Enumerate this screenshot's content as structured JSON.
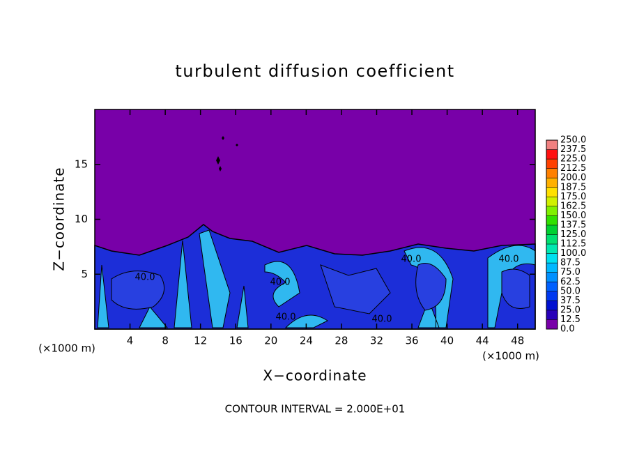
{
  "chart_data": {
    "type": "contour",
    "title": "turbulent diffusion coefficient",
    "xlabel": "X−coordinate",
    "ylabel": "Z−coordinate",
    "xunit": "(×1000 m)",
    "xunit_right": "(×1000 m)",
    "footer": "CONTOUR INTERVAL = 2.000E+01",
    "xlim": [
      0,
      50
    ],
    "xticks": [
      4,
      8,
      12,
      16,
      20,
      24,
      28,
      32,
      36,
      40,
      44,
      48
    ],
    "ylim": [
      0,
      20
    ],
    "yticks": [
      5,
      10,
      15
    ],
    "annotations": [
      "40.0",
      "40.0",
      "40.0",
      "40.0",
      "40.0",
      "40.0"
    ],
    "colorbar": {
      "levels": [
        {
          "value": 0,
          "label": "0.0"
        },
        {
          "value": 12.5,
          "label": "12.5"
        },
        {
          "value": 25,
          "label": "25.0"
        },
        {
          "value": 37.5,
          "label": "37.5"
        },
        {
          "value": 50,
          "label": "50.0"
        },
        {
          "value": 62.5,
          "label": "62.5"
        },
        {
          "value": 75,
          "label": "75.0"
        },
        {
          "value": 87.5,
          "label": "87.5"
        },
        {
          "value": 100,
          "label": "100.0"
        },
        {
          "value": 112.5,
          "label": "112.5"
        },
        {
          "value": 125,
          "label": "125.0"
        },
        {
          "value": 137.5,
          "label": "137.5"
        },
        {
          "value": 150,
          "label": "150.0"
        },
        {
          "value": 162.5,
          "label": "162.5"
        },
        {
          "value": 175,
          "label": "175.0"
        },
        {
          "value": 187.5,
          "label": "187.5"
        },
        {
          "value": 200,
          "label": "200.0"
        },
        {
          "value": 212.5,
          "label": "212.5"
        },
        {
          "value": 225,
          "label": "225.0"
        },
        {
          "value": 237.5,
          "label": "237.5"
        },
        {
          "value": 250,
          "label": "250.0"
        }
      ],
      "colors": [
        "#7800a8",
        "#2800b8",
        "#0010d0",
        "#0038f0",
        "#0060ff",
        "#0090ff",
        "#00b8ff",
        "#00e0f0",
        "#00e8b0",
        "#00e070",
        "#00d030",
        "#30e000",
        "#80f000",
        "#d0f000",
        "#ffe000",
        "#ffb000",
        "#ff8000",
        "#ff4000",
        "#ff1010",
        "#f08080"
      ]
    }
  }
}
